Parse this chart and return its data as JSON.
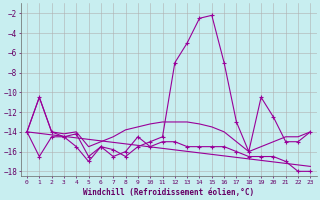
{
  "xlabel": "Windchill (Refroidissement éolien,°C)",
  "background_color": "#c8eef0",
  "grid_color": "#b0b0b0",
  "line_color": "#990099",
  "xlim": [
    -0.5,
    23.5
  ],
  "ylim": [
    -18.5,
    -1.0
  ],
  "yticks": [
    -18,
    -16,
    -14,
    -12,
    -10,
    -8,
    -6,
    -4,
    -2
  ],
  "xticks": [
    0,
    1,
    2,
    3,
    4,
    5,
    6,
    7,
    8,
    9,
    10,
    11,
    12,
    13,
    14,
    15,
    16,
    17,
    18,
    19,
    20,
    21,
    22,
    23
  ],
  "series1": [
    [
      0,
      -14.0
    ],
    [
      1,
      -10.5
    ],
    [
      2,
      -14.0
    ],
    [
      3,
      -14.5
    ],
    [
      4,
      -14.2
    ],
    [
      5,
      -16.5
    ],
    [
      6,
      -15.5
    ],
    [
      7,
      -15.8
    ],
    [
      8,
      -16.5
    ],
    [
      9,
      -15.5
    ],
    [
      10,
      -15.0
    ],
    [
      11,
      -14.5
    ],
    [
      12,
      -7.0
    ],
    [
      13,
      -5.0
    ],
    [
      14,
      -2.5
    ],
    [
      15,
      -2.2
    ],
    [
      16,
      -7.0
    ],
    [
      17,
      -13.0
    ],
    [
      18,
      -16.0
    ],
    [
      19,
      -10.5
    ],
    [
      20,
      -12.5
    ],
    [
      21,
      -15.0
    ],
    [
      22,
      -15.0
    ],
    [
      23,
      -14.0
    ]
  ],
  "series2": [
    [
      0,
      -14.0
    ],
    [
      1,
      -16.5
    ],
    [
      2,
      -14.5
    ],
    [
      3,
      -14.5
    ],
    [
      4,
      -15.5
    ],
    [
      5,
      -17.0
    ],
    [
      6,
      -15.5
    ],
    [
      7,
      -16.5
    ],
    [
      8,
      -16.0
    ],
    [
      9,
      -14.5
    ],
    [
      10,
      -15.5
    ],
    [
      11,
      -15.0
    ],
    [
      12,
      -15.0
    ],
    [
      13,
      -15.5
    ],
    [
      14,
      -15.5
    ],
    [
      15,
      -15.5
    ],
    [
      16,
      -15.5
    ],
    [
      17,
      -16.0
    ],
    [
      18,
      -16.5
    ],
    [
      19,
      -16.5
    ],
    [
      20,
      -16.5
    ],
    [
      21,
      -17.0
    ],
    [
      22,
      -18.0
    ],
    [
      23,
      -18.0
    ]
  ],
  "series3_curved": [
    [
      0,
      -14.0
    ],
    [
      1,
      -10.5
    ],
    [
      2,
      -14.0
    ],
    [
      3,
      -14.2
    ],
    [
      4,
      -14.0
    ],
    [
      5,
      -15.5
    ],
    [
      6,
      -15.0
    ],
    [
      7,
      -14.5
    ],
    [
      8,
      -13.8
    ],
    [
      9,
      -13.5
    ],
    [
      10,
      -13.2
    ],
    [
      11,
      -13.0
    ],
    [
      12,
      -13.0
    ],
    [
      13,
      -13.0
    ],
    [
      14,
      -13.2
    ],
    [
      15,
      -13.5
    ],
    [
      16,
      -14.0
    ],
    [
      17,
      -15.0
    ],
    [
      18,
      -16.0
    ],
    [
      19,
      -15.5
    ],
    [
      20,
      -15.0
    ],
    [
      21,
      -14.5
    ],
    [
      22,
      -14.5
    ],
    [
      23,
      -14.0
    ]
  ],
  "trend_line": [
    [
      0,
      -14.0
    ],
    [
      23,
      -17.5
    ]
  ]
}
